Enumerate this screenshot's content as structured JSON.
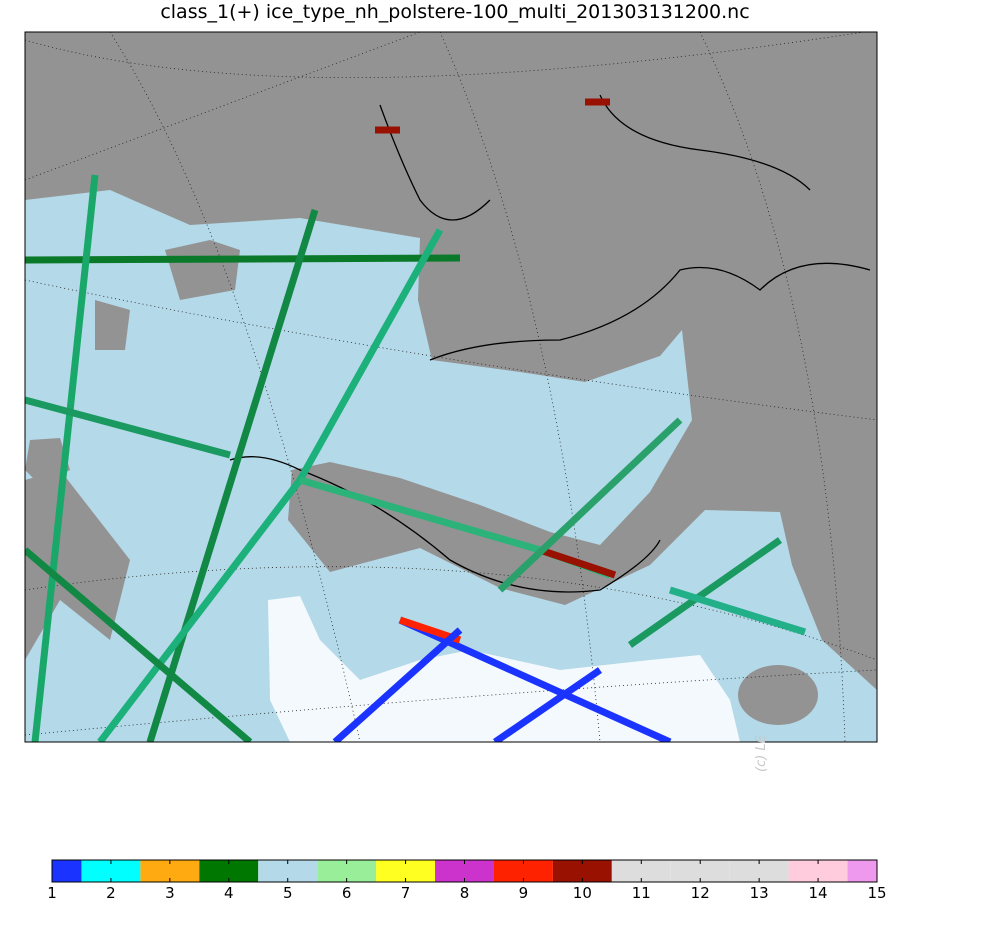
{
  "title": "class_1(+) ice_type_nh_polstere-100_multi_201303131200.nc",
  "watermark": "(c) LE",
  "colorbar": {
    "lim": [
      1,
      15
    ],
    "ticks": [
      1,
      2,
      3,
      4,
      5,
      6,
      7,
      8,
      9,
      10,
      11,
      12,
      13,
      14,
      15
    ],
    "colors": [
      "#1a33ff",
      "#00ffff",
      "#ffaa11",
      "#007700",
      "#b4d9e8",
      "#99ee99",
      "#ffff22",
      "#cc33cc",
      "#ff2200",
      "#991100",
      "#dddddd",
      "#dddddd",
      "#dddddd",
      "#ffccdd",
      "#ee99ee"
    ]
  }
}
